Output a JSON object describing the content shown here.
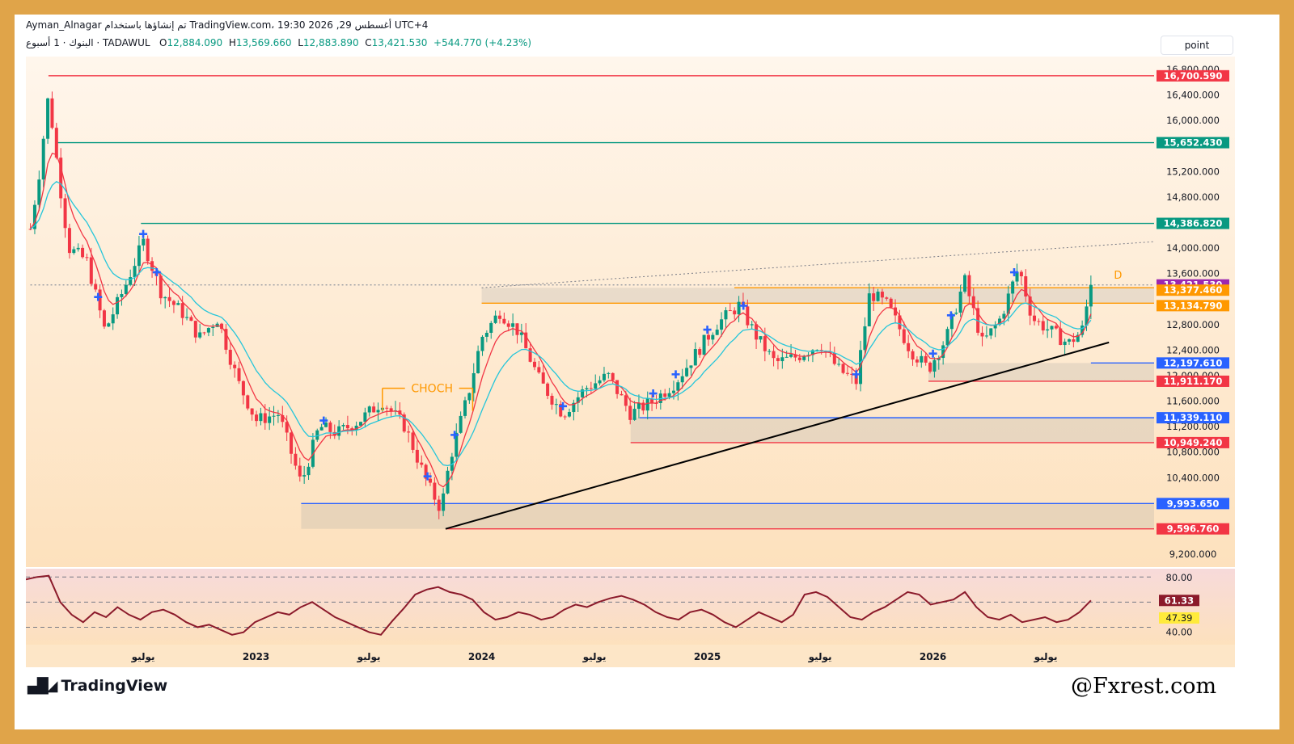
{
  "header": {
    "line1": "Ayman_Alnagar تم إنشاؤها باستخدام TradingView.com، 19:30 2026 ,29 أغسطس UTC+4",
    "symbol_prefix": "البنوك · 1 أسبوع · TADAWUL",
    "open_label": "O",
    "open": "12,884.090",
    "high_label": "H",
    "high": "13,569.660",
    "low_label": "L",
    "low": "12,883.890",
    "close_label": "C",
    "close": "13,421.530",
    "change": "+544.770 (+4.23%)"
  },
  "toolbar": {
    "point_label": "point"
  },
  "footer": {
    "brand": "TradingView",
    "watermark": "@Fxrest.com"
  },
  "chart_data": [
    {
      "type": "candlestick",
      "symbol": "TADAWUL",
      "interval": "1W",
      "ylim": [
        9000,
        17000
      ],
      "y_ticks": [
        16800,
        16400,
        16000,
        15200,
        14800,
        14000,
        13600,
        12800,
        12400,
        12000,
        11600,
        11200,
        10800,
        10400,
        9200
      ],
      "x_tick_labels": [
        {
          "label": "يوليو",
          "t": 2022.5
        },
        {
          "label": "2023",
          "t": 2023.0
        },
        {
          "label": "يوليو",
          "t": 2023.5
        },
        {
          "label": "2024",
          "t": 2024.0
        },
        {
          "label": "يوليو",
          "t": 2024.5
        },
        {
          "label": "2025",
          "t": 2025.0
        },
        {
          "label": "يوليو",
          "t": 2025.5
        },
        {
          "label": "2026",
          "t": 2026.0
        },
        {
          "label": "يوليو",
          "t": 2026.5
        }
      ],
      "last": {
        "open": 12884.09,
        "high": 13569.66,
        "low": 12883.89,
        "close": 13421.53
      },
      "price_path": [
        [
          2022.0,
          14300
        ],
        [
          2022.04,
          15200
        ],
        [
          2022.08,
          16400
        ],
        [
          2022.13,
          15000
        ],
        [
          2022.17,
          14000
        ],
        [
          2022.25,
          13800
        ],
        [
          2022.33,
          12700
        ],
        [
          2022.42,
          13400
        ],
        [
          2022.5,
          14100
        ],
        [
          2022.58,
          13300
        ],
        [
          2022.67,
          13000
        ],
        [
          2022.75,
          12600
        ],
        [
          2022.83,
          12900
        ],
        [
          2022.92,
          11900
        ],
        [
          2023.0,
          11300
        ],
        [
          2023.1,
          11400
        ],
        [
          2023.2,
          10300
        ],
        [
          2023.28,
          11200
        ],
        [
          2023.36,
          11100
        ],
        [
          2023.46,
          11300
        ],
        [
          2023.56,
          11600
        ],
        [
          2023.66,
          11200
        ],
        [
          2023.76,
          10300
        ],
        [
          2023.82,
          9900
        ],
        [
          2023.86,
          10700
        ],
        [
          2023.94,
          11700
        ],
        [
          2024.0,
          12600
        ],
        [
          2024.08,
          13000
        ],
        [
          2024.16,
          12700
        ],
        [
          2024.26,
          11900
        ],
        [
          2024.36,
          11400
        ],
        [
          2024.46,
          11800
        ],
        [
          2024.56,
          12000
        ],
        [
          2024.66,
          11400
        ],
        [
          2024.76,
          11600
        ],
        [
          2024.86,
          11900
        ],
        [
          2024.96,
          12400
        ],
        [
          2025.04,
          12800
        ],
        [
          2025.14,
          13100
        ],
        [
          2025.22,
          12600
        ],
        [
          2025.3,
          12200
        ],
        [
          2025.4,
          12300
        ],
        [
          2025.5,
          12500
        ],
        [
          2025.58,
          12100
        ],
        [
          2025.66,
          11900
        ],
        [
          2025.72,
          13300
        ],
        [
          2025.8,
          13100
        ],
        [
          2025.9,
          12400
        ],
        [
          2025.98,
          12100
        ],
        [
          2026.06,
          12600
        ],
        [
          2026.14,
          13500
        ],
        [
          2026.22,
          12500
        ],
        [
          2026.3,
          12900
        ],
        [
          2026.38,
          13700
        ],
        [
          2026.44,
          12900
        ],
        [
          2026.52,
          12700
        ],
        [
          2026.6,
          12500
        ],
        [
          2026.66,
          12700
        ],
        [
          2026.7,
          13421.53
        ]
      ],
      "horizontal_levels": [
        {
          "value": 16700.59,
          "label": "16,700.590",
          "color": "#f23645"
        },
        {
          "value": 15652.43,
          "label": "15,652.430",
          "color": "#089981"
        },
        {
          "value": 14386.82,
          "label": "14,386.820",
          "color": "#089981"
        },
        {
          "value": 13421.53,
          "label": "13,421.530",
          "color": "#9c27b0"
        },
        {
          "value": 13377.46,
          "label": "13,377.460",
          "color": "#ff9800"
        },
        {
          "value": 13134.79,
          "label": "13,134.790",
          "color": "#ff9800"
        },
        {
          "value": 12197.61,
          "label": "12,197.610",
          "color": "#2962ff"
        },
        {
          "value": 11911.17,
          "label": "11,911.170",
          "color": "#f23645"
        },
        {
          "value": 11339.11,
          "label": "11,339.110",
          "color": "#2962ff"
        },
        {
          "value": 10949.24,
          "label": "10,949.240",
          "color": "#f23645"
        },
        {
          "value": 9993.65,
          "label": "9,993.650",
          "color": "#2962ff"
        },
        {
          "value": 9596.76,
          "label": "9,596.760",
          "color": "#f23645"
        }
      ],
      "annotations": [
        {
          "text": "CHOCH",
          "color": "#ff9800"
        },
        {
          "text": "D",
          "color": "#ff9800"
        }
      ],
      "trendline": {
        "from": [
          2023.84,
          9596.76
        ],
        "to": [
          2026.78,
          12520
        ],
        "color": "#000000"
      }
    },
    {
      "type": "line",
      "name": "RSI",
      "ylim": [
        30,
        84
      ],
      "levels": [
        80,
        60,
        40
      ],
      "y_tick_labels": [
        "80.00",
        "40.00"
      ],
      "current": "61.33",
      "ma": "47.39",
      "values": [
        78,
        80,
        81,
        60,
        50,
        44,
        52,
        48,
        56,
        50,
        46,
        52,
        54,
        50,
        44,
        40,
        42,
        38,
        34,
        36,
        44,
        48,
        52,
        50,
        56,
        60,
        54,
        48,
        44,
        40,
        36,
        34,
        45,
        55,
        66,
        70,
        72,
        68,
        66,
        62,
        52,
        46,
        48,
        52,
        50,
        46,
        48,
        54,
        58,
        56,
        60,
        63,
        65,
        62,
        58,
        52,
        48,
        46,
        52,
        54,
        50,
        44,
        40,
        46,
        52,
        48,
        44,
        50,
        66,
        68,
        64,
        56,
        48,
        46,
        52,
        56,
        62,
        68,
        66,
        58,
        60,
        62,
        68,
        56,
        48,
        46,
        50,
        44,
        46,
        48,
        44,
        46,
        52,
        61.33
      ]
    }
  ]
}
